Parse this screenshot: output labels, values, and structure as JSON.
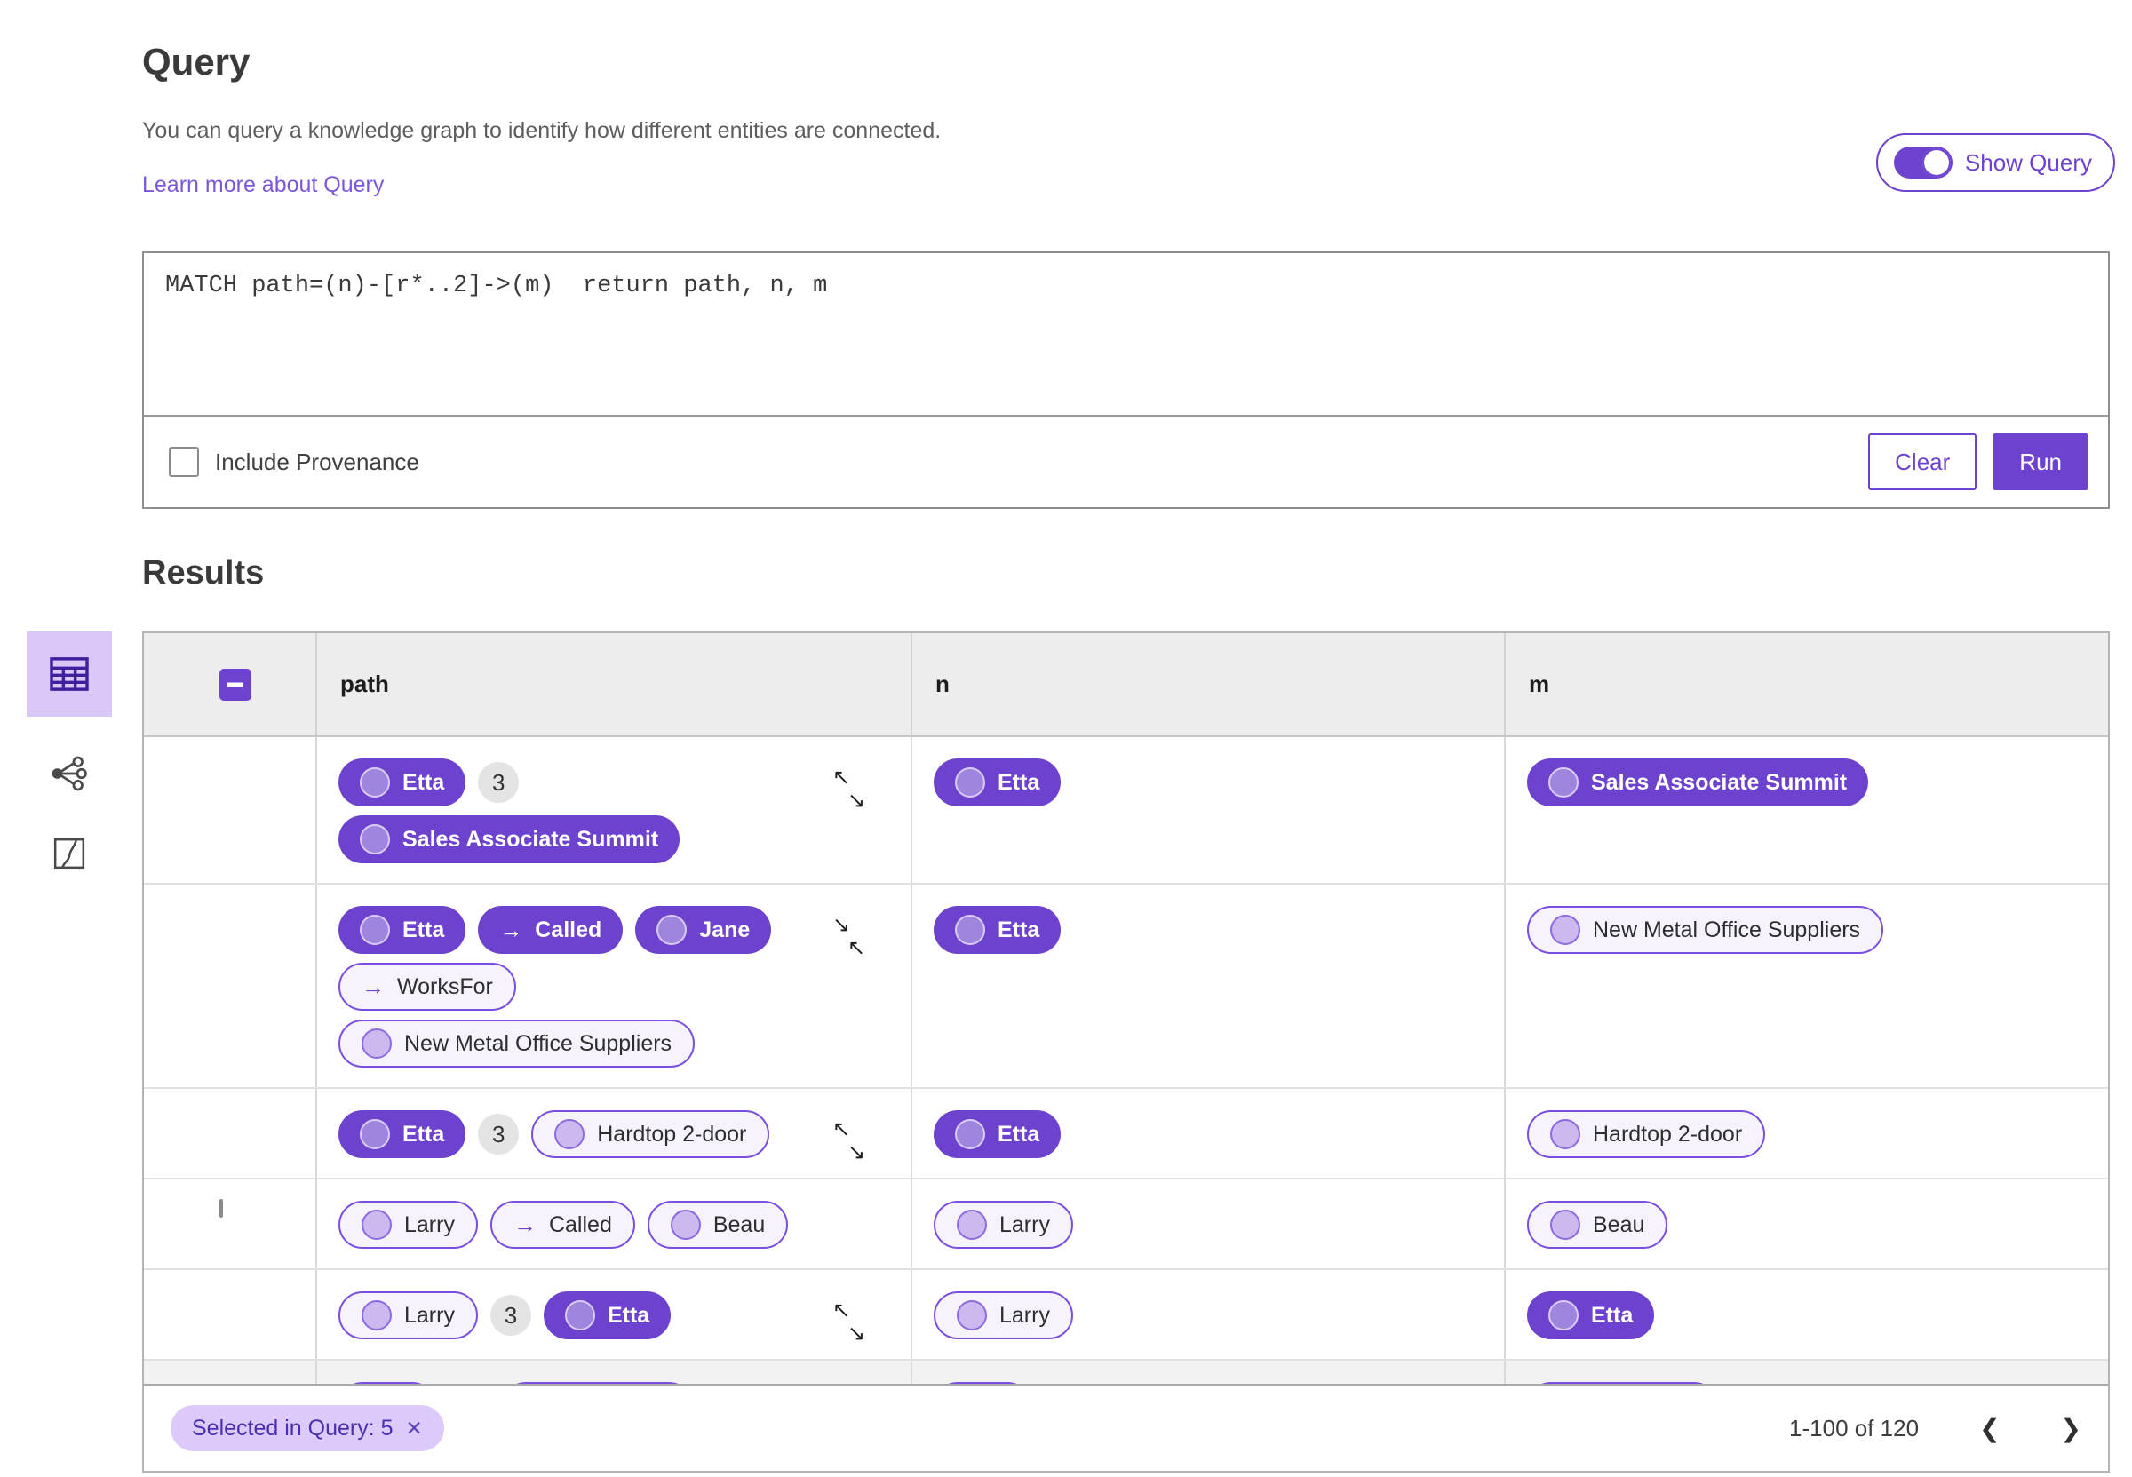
{
  "colors": {
    "primary": "#6d42ce",
    "primary-dark": "#4b2fae",
    "link": "#7a58d9",
    "pill-bg": "#f6f3fd",
    "pill-border": "#7a4fe0",
    "selected-view-bg": "#d9c7f7",
    "chip-bg": "#dccbfa",
    "badge-bg": "#e4e4e4"
  },
  "query_panel": {
    "title": "Query",
    "description": "You can query a knowledge graph to identify how different entities are connected.",
    "learn_more_link": "Learn more about Query",
    "show_query_toggle": {
      "label": "Show Query",
      "state": "on"
    },
    "editor_text": "MATCH path=(n)-[r*..2]->(m)  return path, n, m",
    "include_provenance": {
      "label": "Include Provenance",
      "checked": false
    },
    "clear_button": "Clear",
    "run_button": "Run"
  },
  "results": {
    "title": "Results",
    "views": [
      {
        "name": "table-view",
        "selected": true
      },
      {
        "name": "graph-view",
        "selected": false
      },
      {
        "name": "map-view",
        "selected": false
      }
    ],
    "columns": [
      "path",
      "n",
      "m"
    ],
    "header_checkbox": "indeterminate",
    "rows": [
      {
        "check": "checked",
        "overflow": "expand",
        "path": [
          [
            {
              "kind": "node",
              "variant": "filled",
              "label": "Etta"
            },
            {
              "kind": "count",
              "label": "3"
            }
          ],
          [
            {
              "kind": "node",
              "variant": "filled",
              "label": "Sales Associate Summit"
            }
          ]
        ],
        "n": [
          {
            "kind": "node",
            "variant": "filled",
            "label": "Etta"
          }
        ],
        "m": [
          {
            "kind": "node",
            "variant": "filled",
            "label": "Sales Associate Summit"
          }
        ]
      },
      {
        "check": "indeterminate",
        "overflow": "collapse",
        "path": [
          [
            {
              "kind": "node",
              "variant": "filled",
              "label": "Etta"
            },
            {
              "kind": "edge",
              "variant": "filled",
              "label": "Called"
            },
            {
              "kind": "node",
              "variant": "filled",
              "label": "Jane"
            }
          ],
          [
            {
              "kind": "edge",
              "variant": "outlined",
              "label": "WorksFor"
            }
          ],
          [
            {
              "kind": "node",
              "variant": "outlined",
              "label": "New Metal Office Suppliers"
            }
          ]
        ],
        "n": [
          {
            "kind": "node",
            "variant": "filled",
            "label": "Etta"
          }
        ],
        "m": [
          {
            "kind": "node",
            "variant": "outlined",
            "label": "New Metal Office Suppliers"
          }
        ]
      },
      {
        "check": "indeterminate",
        "overflow": "expand",
        "path": [
          [
            {
              "kind": "node",
              "variant": "filled",
              "label": "Etta"
            },
            {
              "kind": "count",
              "label": "3"
            },
            {
              "kind": "node",
              "variant": "outlined",
              "label": "Hardtop 2-door"
            }
          ]
        ],
        "n": [
          {
            "kind": "node",
            "variant": "filled",
            "label": "Etta"
          }
        ],
        "m": [
          {
            "kind": "node",
            "variant": "outlined",
            "label": "Hardtop 2-door"
          }
        ]
      },
      {
        "check": "unchecked",
        "overflow": null,
        "path": [
          [
            {
              "kind": "node",
              "variant": "outlined",
              "label": "Larry"
            },
            {
              "kind": "edge",
              "variant": "outlined",
              "label": "Called"
            },
            {
              "kind": "node",
              "variant": "outlined",
              "label": "Beau"
            }
          ]
        ],
        "n": [
          {
            "kind": "node",
            "variant": "outlined",
            "label": "Larry"
          }
        ],
        "m": [
          {
            "kind": "node",
            "variant": "outlined",
            "label": "Beau"
          }
        ]
      },
      {
        "check": "indeterminate",
        "overflow": "expand",
        "path": [
          [
            {
              "kind": "node",
              "variant": "outlined",
              "label": "Larry"
            },
            {
              "kind": "count",
              "label": "3"
            },
            {
              "kind": "node",
              "variant": "filled",
              "label": "Etta"
            }
          ]
        ],
        "n": [
          {
            "kind": "node",
            "variant": "outlined",
            "label": "Larry"
          }
        ],
        "m": [
          {
            "kind": "node",
            "variant": "filled",
            "label": "Etta"
          }
        ]
      },
      {
        "check": "none",
        "overflow": null,
        "partial": true,
        "path": [
          [
            {
              "kind": "node",
              "variant": "outlined",
              "label": ""
            },
            {
              "kind": "count",
              "label": ""
            },
            {
              "kind": "node",
              "variant": "outlined",
              "label": "",
              "wide": true
            }
          ]
        ],
        "n": [
          {
            "kind": "node",
            "variant": "outlined",
            "label": ""
          }
        ],
        "m": [
          {
            "kind": "node",
            "variant": "outlined",
            "label": "",
            "wide": true
          }
        ]
      }
    ],
    "footer": {
      "selected_chip": "Selected in Query: 5",
      "range": "1-100 of 120"
    }
  }
}
